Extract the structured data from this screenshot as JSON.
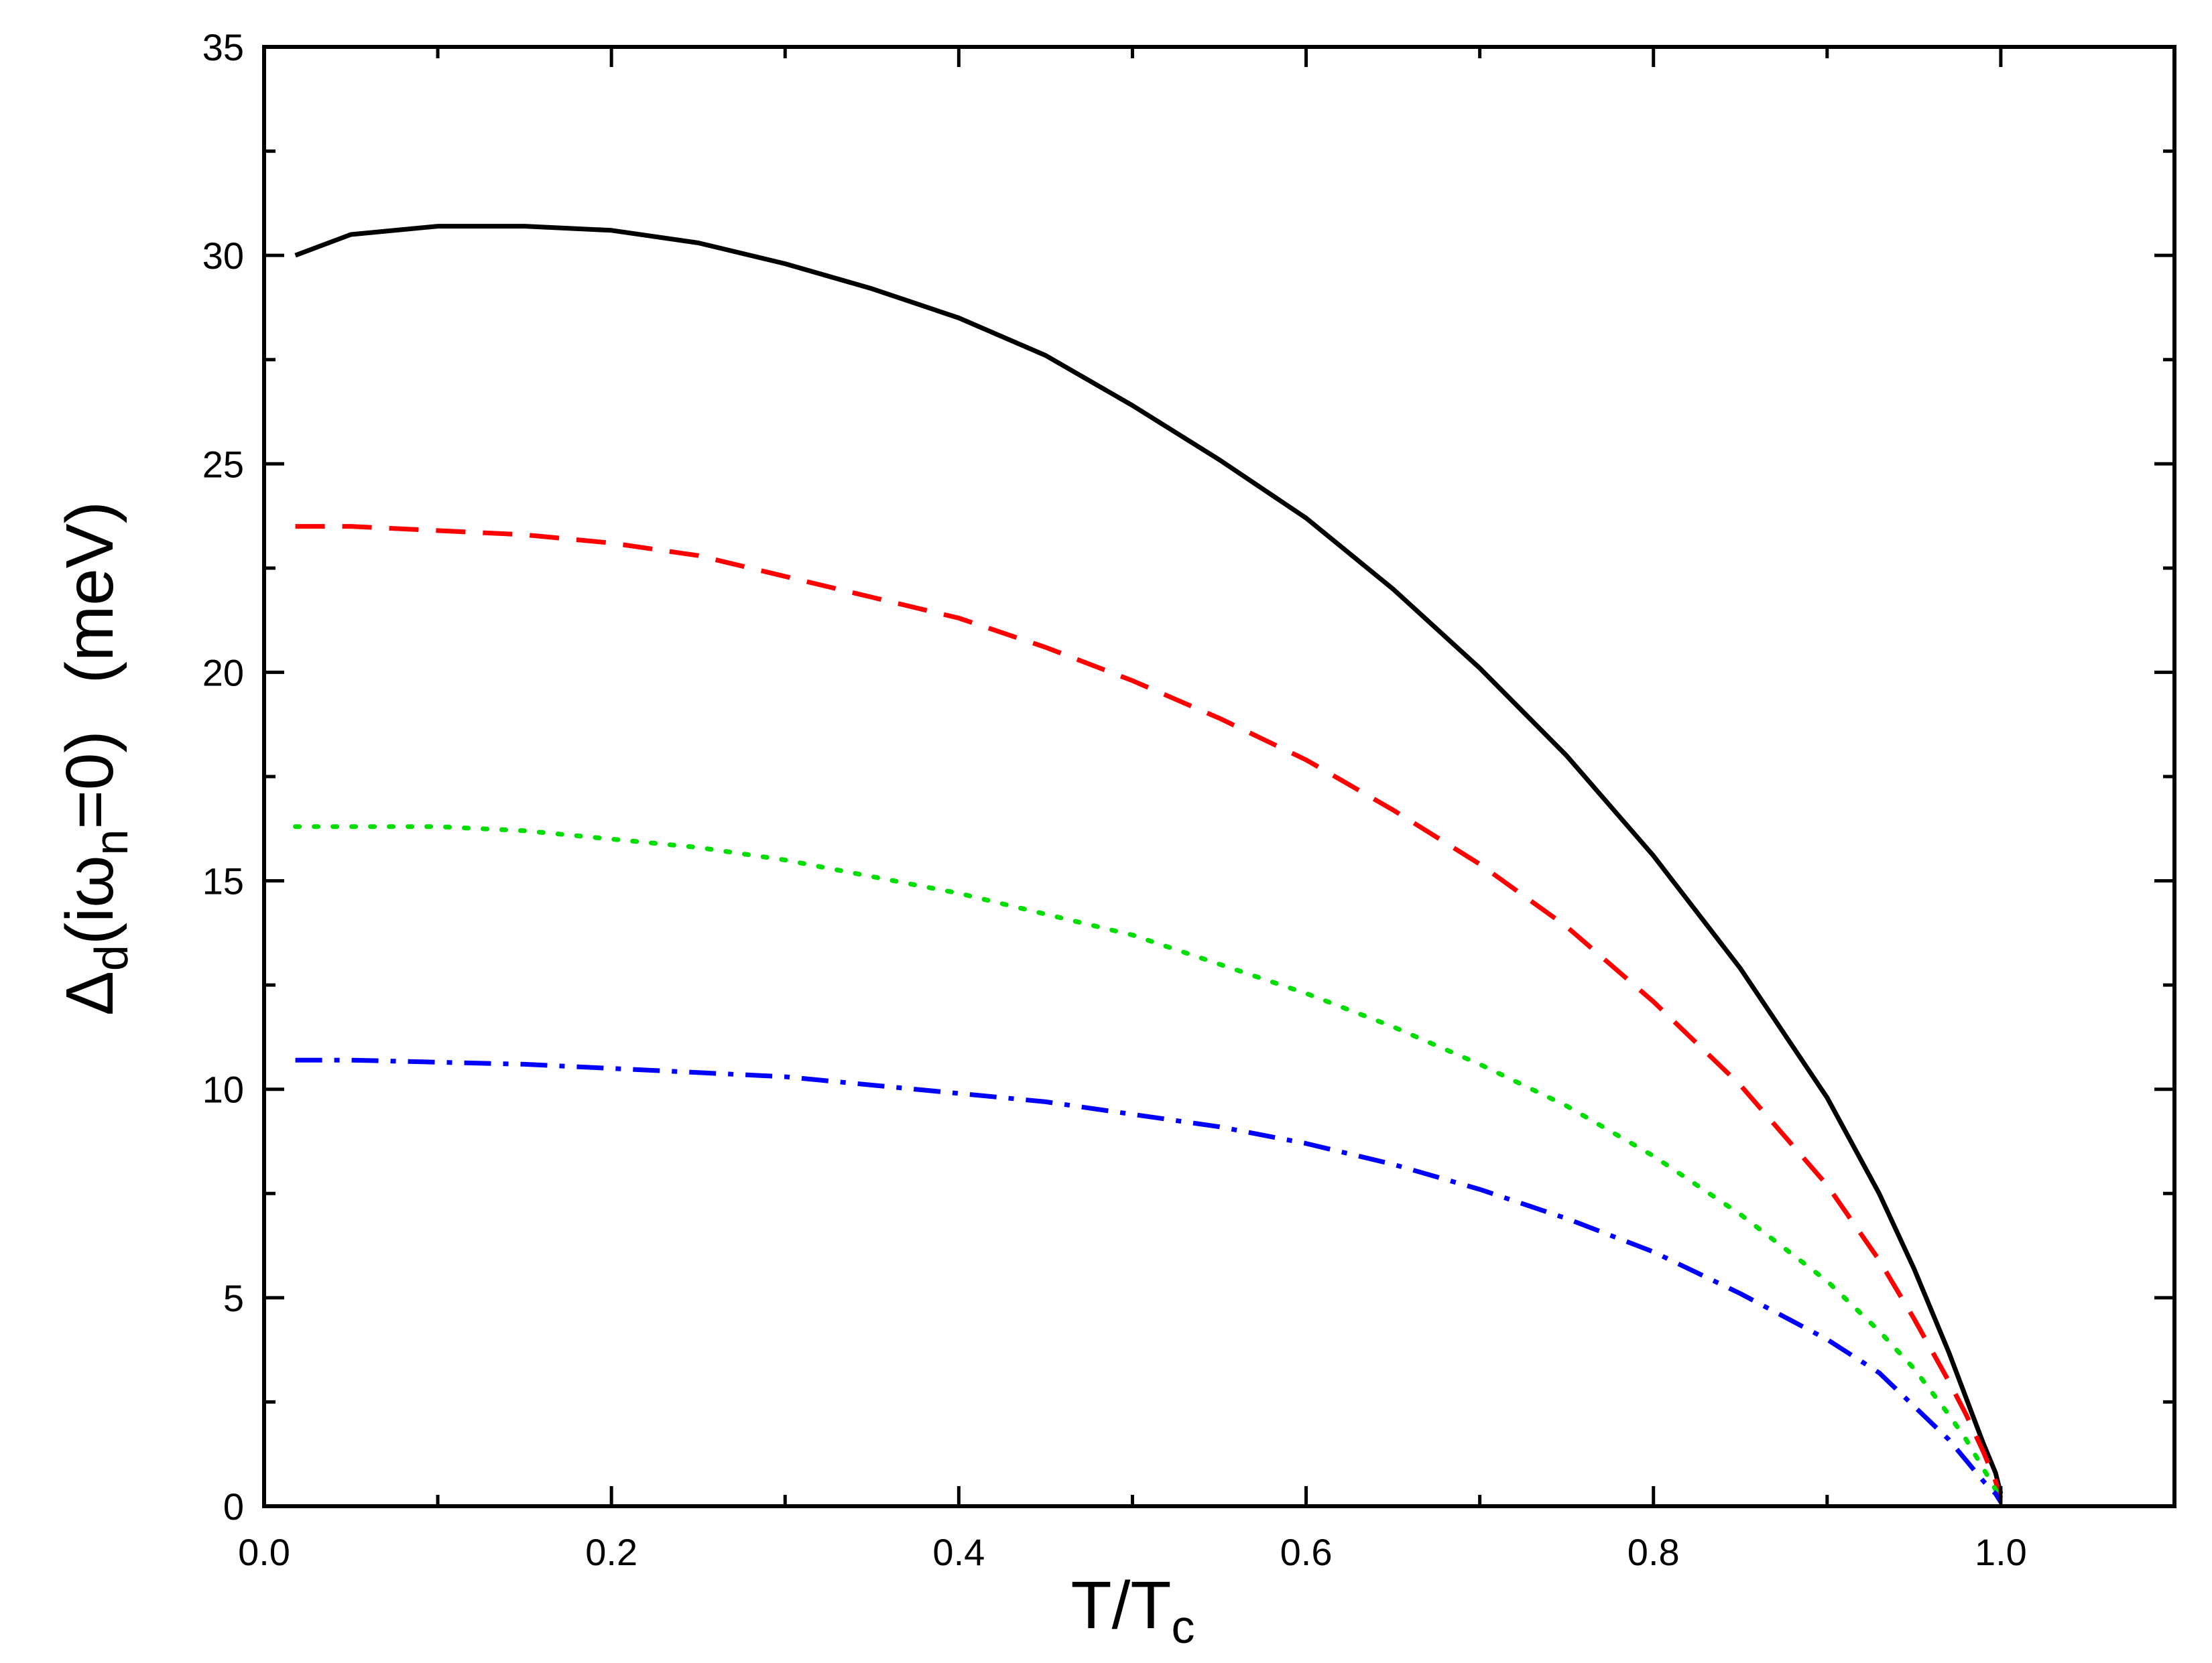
{
  "chart_data": {
    "type": "line",
    "title": "",
    "xlabel": {
      "main": "T/T",
      "sub": "c"
    },
    "ylabel": {
      "pre": "Δ",
      "sub1": "d",
      "mid": "(iω",
      "sub2": "n",
      "post": "=0)",
      "unit": "(meV)"
    },
    "xlim": [
      0,
      1.1
    ],
    "ylim": [
      0,
      35
    ],
    "x_ticks": [
      0.0,
      0.2,
      0.4,
      0.6,
      0.8,
      1.0
    ],
    "x_tick_labels": [
      "0.0",
      "0.2",
      "0.4",
      "0.6",
      "0.8",
      "1.0"
    ],
    "y_ticks": [
      0,
      5,
      10,
      15,
      20,
      25,
      30,
      35
    ],
    "y_tick_labels": [
      "0",
      "5",
      "10",
      "15",
      "20",
      "25",
      "30",
      "35"
    ],
    "grid": false,
    "legend": "none",
    "series": [
      {
        "color": "#000000",
        "style": "solid",
        "x": [
          0.018,
          0.05,
          0.1,
          0.15,
          0.2,
          0.25,
          0.3,
          0.35,
          0.4,
          0.45,
          0.5,
          0.55,
          0.6,
          0.65,
          0.7,
          0.75,
          0.8,
          0.85,
          0.9,
          0.93,
          0.95,
          0.97,
          0.98,
          0.99,
          0.997,
          1.0
        ],
        "y": [
          30.0,
          30.5,
          30.7,
          30.7,
          30.6,
          30.3,
          29.8,
          29.2,
          28.5,
          27.6,
          26.4,
          25.1,
          23.7,
          22.0,
          20.1,
          18.0,
          15.6,
          12.9,
          9.8,
          7.5,
          5.7,
          3.7,
          2.6,
          1.5,
          0.8,
          0.3
        ]
      },
      {
        "color": "#ff0000",
        "style": "dashed",
        "x": [
          0.018,
          0.05,
          0.1,
          0.15,
          0.2,
          0.25,
          0.3,
          0.35,
          0.4,
          0.45,
          0.5,
          0.55,
          0.6,
          0.65,
          0.7,
          0.75,
          0.8,
          0.85,
          0.9,
          0.93,
          0.95,
          0.97,
          0.98,
          0.99,
          0.997,
          1.0
        ],
        "y": [
          23.5,
          23.5,
          23.4,
          23.3,
          23.1,
          22.8,
          22.3,
          21.8,
          21.3,
          20.6,
          19.8,
          18.9,
          17.9,
          16.7,
          15.4,
          13.9,
          12.1,
          10.1,
          7.7,
          5.9,
          4.5,
          3.0,
          2.2,
          1.3,
          0.6,
          0.2
        ]
      },
      {
        "color": "#00dd00",
        "style": "dotted",
        "x": [
          0.018,
          0.05,
          0.1,
          0.15,
          0.2,
          0.25,
          0.3,
          0.35,
          0.4,
          0.45,
          0.5,
          0.55,
          0.6,
          0.65,
          0.7,
          0.75,
          0.8,
          0.85,
          0.9,
          0.93,
          0.95,
          0.97,
          0.98,
          0.99,
          0.997,
          1.0
        ],
        "y": [
          16.3,
          16.3,
          16.3,
          16.2,
          16.0,
          15.8,
          15.5,
          15.1,
          14.7,
          14.2,
          13.7,
          13.0,
          12.3,
          11.5,
          10.6,
          9.6,
          8.4,
          7.0,
          5.4,
          4.2,
          3.3,
          2.2,
          1.6,
          0.9,
          0.4,
          0.1
        ]
      },
      {
        "color": "#0000ff",
        "style": "dashdot",
        "x": [
          0.018,
          0.05,
          0.1,
          0.15,
          0.2,
          0.25,
          0.3,
          0.35,
          0.4,
          0.45,
          0.5,
          0.55,
          0.6,
          0.65,
          0.7,
          0.75,
          0.8,
          0.85,
          0.9,
          0.93,
          0.95,
          0.97,
          0.98,
          0.99,
          0.997,
          1.0
        ],
        "y": [
          10.7,
          10.7,
          10.65,
          10.6,
          10.5,
          10.4,
          10.3,
          10.1,
          9.9,
          9.7,
          9.4,
          9.1,
          8.7,
          8.2,
          7.6,
          6.9,
          6.1,
          5.1,
          4.0,
          3.2,
          2.4,
          1.6,
          1.1,
          0.6,
          0.3,
          0.1
        ]
      }
    ]
  }
}
